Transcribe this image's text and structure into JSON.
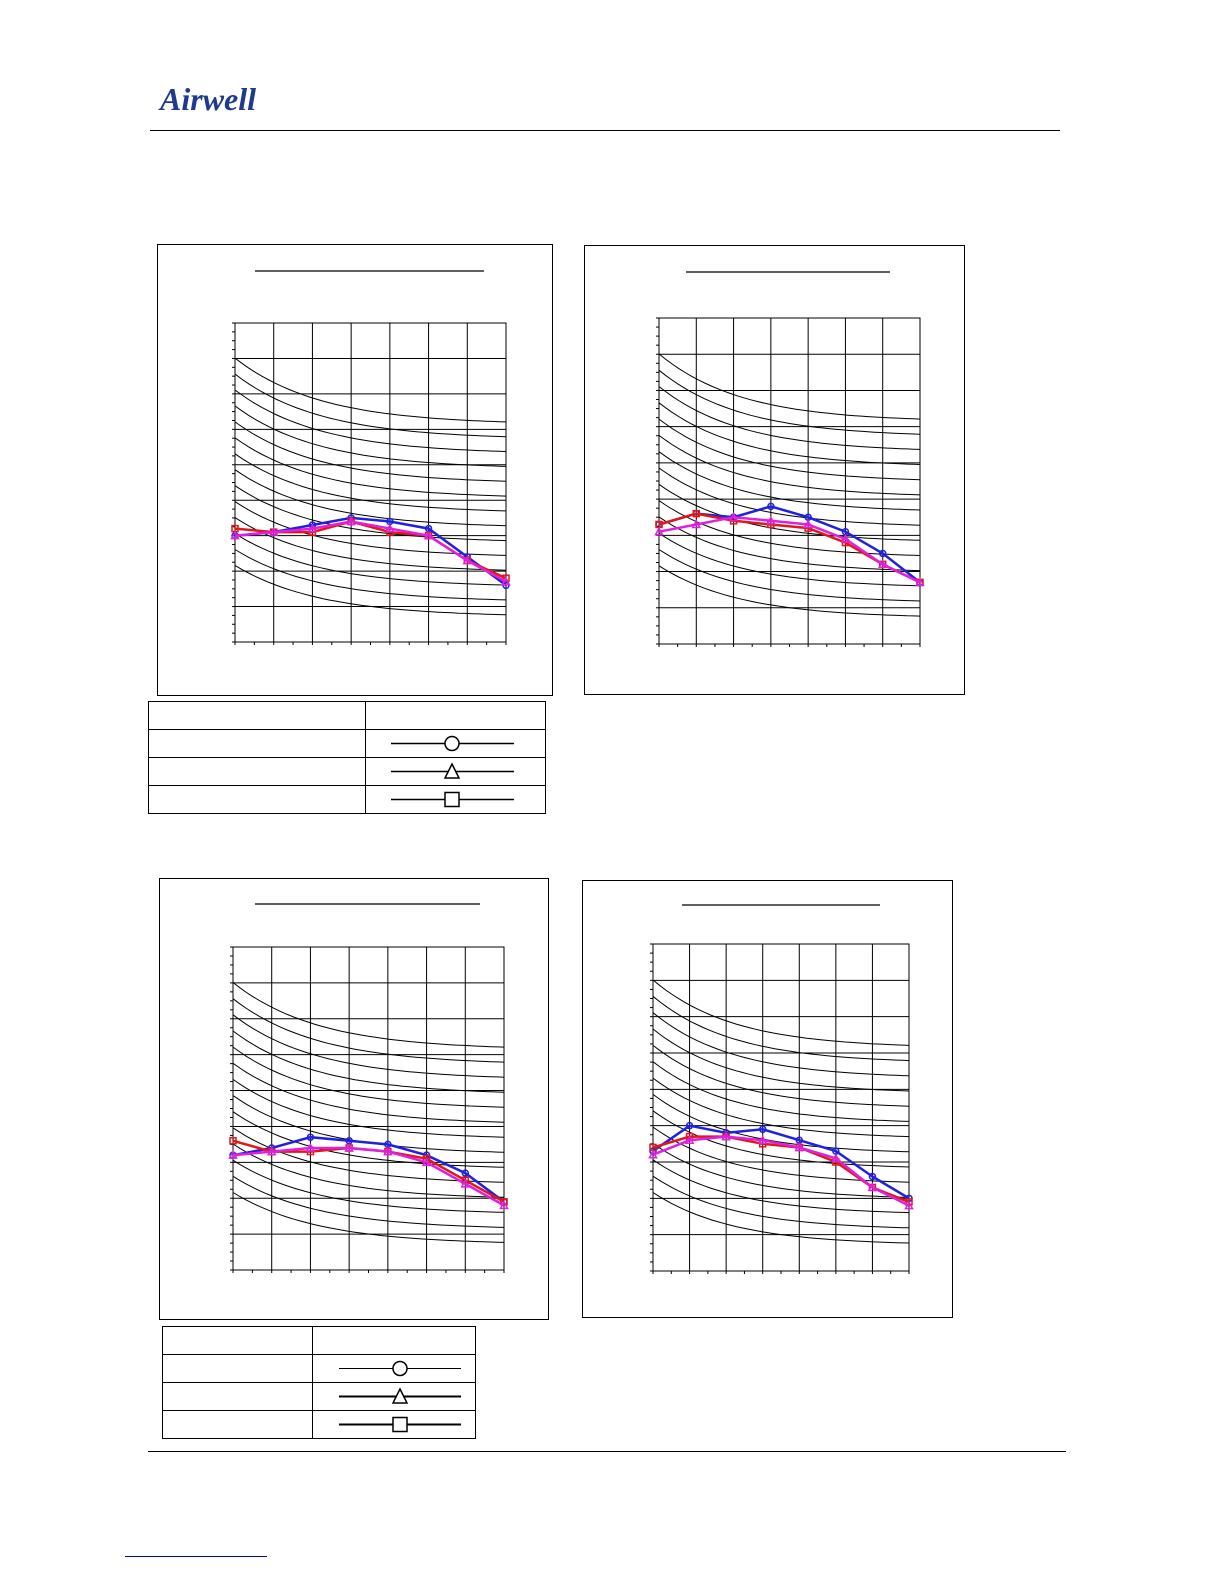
{
  "brand": {
    "logo_text": "Airwell",
    "logo_color": "#1f3a8c"
  },
  "legend_top": {
    "rows": [
      {
        "label": "",
        "marker": "circle"
      },
      {
        "label": "",
        "marker": "triangle"
      },
      {
        "label": "",
        "marker": "square"
      }
    ]
  },
  "legend_bottom": {
    "rows": [
      {
        "label": "",
        "marker": "circle"
      },
      {
        "label": "",
        "marker": "triangle"
      },
      {
        "label": "",
        "marker": "square"
      }
    ]
  },
  "chart_data": [
    {
      "type": "line",
      "title": "",
      "x": [
        0,
        1,
        2,
        3,
        4,
        5,
        6,
        7
      ],
      "xlim": [
        0,
        7
      ],
      "ylim": [
        0,
        9
      ],
      "grid": true,
      "series": [
        {
          "color": "#2020e0",
          "marker": "circle",
          "values": [
            3.0,
            3.1,
            3.3,
            3.5,
            3.4,
            3.2,
            2.4,
            1.6
          ]
        },
        {
          "color": "#e01818",
          "marker": "square",
          "values": [
            3.2,
            3.1,
            3.1,
            3.4,
            3.1,
            3.0,
            2.3,
            1.8
          ]
        },
        {
          "color": "#e020e0",
          "marker": "triangle",
          "values": [
            3.0,
            3.1,
            3.2,
            3.4,
            3.2,
            3.0,
            2.3,
            1.7
          ]
        }
      ]
    },
    {
      "type": "line",
      "title": "",
      "x": [
        0,
        1,
        2,
        3,
        4,
        5,
        6,
        7
      ],
      "xlim": [
        0,
        7
      ],
      "ylim": [
        0,
        9
      ],
      "grid": true,
      "series": [
        {
          "color": "#2020e0",
          "marker": "circle",
          "values": [
            3.3,
            3.6,
            3.5,
            3.8,
            3.5,
            3.1,
            2.5,
            1.7
          ]
        },
        {
          "color": "#e01818",
          "marker": "square",
          "values": [
            3.3,
            3.6,
            3.4,
            3.3,
            3.2,
            2.8,
            2.2,
            1.7
          ]
        },
        {
          "color": "#e020e0",
          "marker": "triangle",
          "values": [
            3.1,
            3.3,
            3.5,
            3.4,
            3.3,
            2.9,
            2.2,
            1.7
          ]
        }
      ]
    },
    {
      "type": "line",
      "title": "",
      "x": [
        0,
        1,
        2,
        3,
        4,
        5,
        6,
        7
      ],
      "xlim": [
        0,
        7
      ],
      "ylim": [
        0,
        9
      ],
      "grid": true,
      "series": [
        {
          "color": "#2020e0",
          "marker": "circle",
          "values": [
            3.2,
            3.4,
            3.7,
            3.6,
            3.5,
            3.2,
            2.7,
            1.9
          ]
        },
        {
          "color": "#e01818",
          "marker": "square",
          "values": [
            3.6,
            3.3,
            3.3,
            3.4,
            3.3,
            3.1,
            2.5,
            1.9
          ]
        },
        {
          "color": "#e020e0",
          "marker": "triangle",
          "values": [
            3.2,
            3.3,
            3.4,
            3.4,
            3.3,
            3.0,
            2.4,
            1.8
          ]
        }
      ]
    },
    {
      "type": "line",
      "title": "",
      "x": [
        0,
        1,
        2,
        3,
        4,
        5,
        6,
        7
      ],
      "xlim": [
        0,
        7
      ],
      "ylim": [
        0,
        9
      ],
      "grid": true,
      "series": [
        {
          "color": "#2020e0",
          "marker": "circle",
          "values": [
            3.3,
            4.0,
            3.8,
            3.9,
            3.6,
            3.3,
            2.6,
            2.0
          ]
        },
        {
          "color": "#e01818",
          "marker": "square",
          "values": [
            3.4,
            3.7,
            3.7,
            3.5,
            3.4,
            3.0,
            2.3,
            1.9
          ]
        },
        {
          "color": "#e020e0",
          "marker": "triangle",
          "values": [
            3.2,
            3.6,
            3.7,
            3.6,
            3.4,
            3.1,
            2.3,
            1.8
          ]
        }
      ]
    }
  ]
}
